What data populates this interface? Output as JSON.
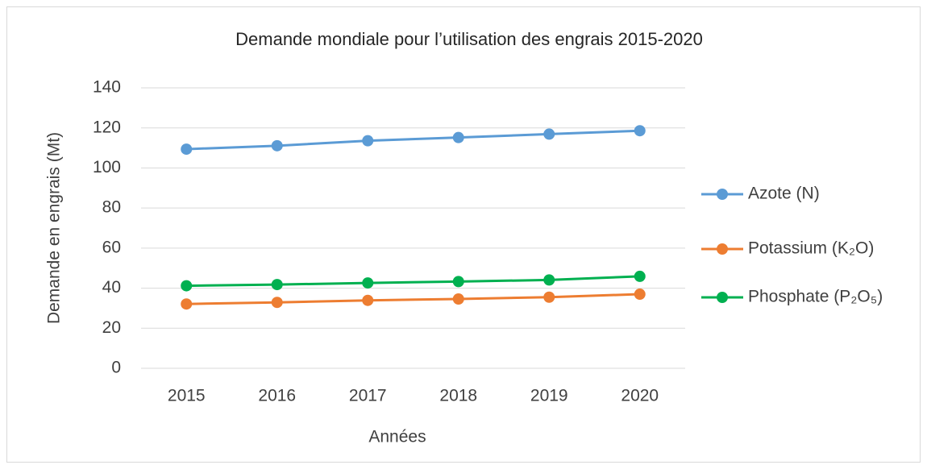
{
  "chart_data": {
    "type": "line",
    "title": "Demande mondiale pour l’utilisation des engrais 2015-2020",
    "xlabel": "Années",
    "ylabel": "Demande en engrais (Mt)",
    "categories": [
      "2015",
      "2016",
      "2017",
      "2018",
      "2019",
      "2020"
    ],
    "series": [
      {
        "name": "Azote (N)",
        "color": "#5b9bd5",
        "values": [
          109.4,
          111.1,
          113.6,
          115.2,
          116.9,
          118.6
        ]
      },
      {
        "name": "Potassium (K₂O)",
        "color": "#ed7d31",
        "values": [
          32.1,
          32.9,
          33.9,
          34.6,
          35.5,
          37.0
        ]
      },
      {
        "name": "Phosphate (P₂O₅)",
        "color": "#00b050",
        "values": [
          41.2,
          41.8,
          42.6,
          43.3,
          44.1,
          45.9
        ]
      }
    ],
    "ylim": [
      0,
      140
    ],
    "yticks": [
      0,
      20,
      40,
      60,
      80,
      100,
      120,
      140
    ],
    "grid": true,
    "legend": "right"
  }
}
